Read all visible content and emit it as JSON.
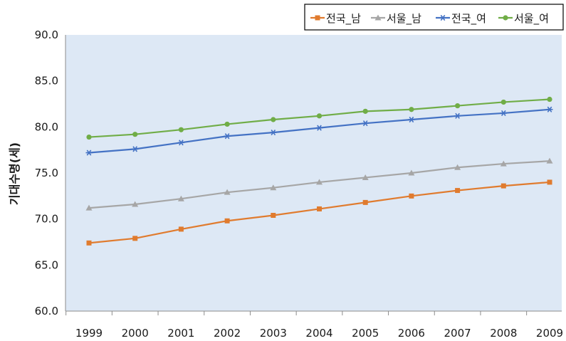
{
  "chart_data": {
    "type": "line",
    "title": "",
    "xlabel": "",
    "ylabel": "기대수명(세)",
    "x": [
      1999,
      2000,
      2001,
      2002,
      2003,
      2004,
      2005,
      2006,
      2007,
      2008,
      2009
    ],
    "ylim": [
      60.0,
      90.0
    ],
    "yticks": [
      "60.0",
      "65.0",
      "70.0",
      "75.0",
      "80.0",
      "85.0",
      "90.0"
    ],
    "grid": false,
    "plot_background": "#dde8f5",
    "legend_position": "top-right",
    "series": [
      {
        "name": "전국_남",
        "color": "#e07b2e",
        "marker": "square",
        "values": [
          67.4,
          67.9,
          68.9,
          69.8,
          70.4,
          71.1,
          71.8,
          72.5,
          73.1,
          73.6,
          74.0
        ]
      },
      {
        "name": "서울_남",
        "color": "#a6a6a6",
        "marker": "triangle",
        "values": [
          71.2,
          71.6,
          72.2,
          72.9,
          73.4,
          74.0,
          74.5,
          75.0,
          75.6,
          76.0,
          76.3
        ]
      },
      {
        "name": "전국_여",
        "color": "#4472c4",
        "marker": "asterisk",
        "values": [
          77.2,
          77.6,
          78.3,
          79.0,
          79.4,
          79.9,
          80.4,
          80.8,
          81.2,
          81.5,
          81.9
        ]
      },
      {
        "name": "서울_여",
        "color": "#70ad47",
        "marker": "circle",
        "values": [
          78.9,
          79.2,
          79.7,
          80.3,
          80.8,
          81.2,
          81.7,
          81.9,
          82.3,
          82.7,
          83.0
        ]
      }
    ]
  }
}
